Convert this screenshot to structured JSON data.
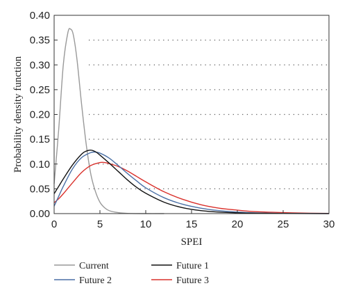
{
  "chart_data": {
    "type": "line",
    "xlabel": "SPEI",
    "ylabel": "Probability density function",
    "xlim": [
      0,
      30
    ],
    "ylim": [
      0,
      0.4
    ],
    "xticks": [
      "0",
      "5",
      "10",
      "15",
      "20",
      "25",
      "30"
    ],
    "yticks": [
      "0.00",
      "0.05",
      "0.10",
      "0.15",
      "0.20",
      "0.25",
      "0.30",
      "0.35",
      "0.40"
    ],
    "grid": "horizontal dotted",
    "legend_position": "bottom",
    "series": [
      {
        "name": "Current",
        "color": "#999999",
        "x": [
          0,
          0.5,
          1,
          1.5,
          1.8,
          2.1,
          2.5,
          3,
          3.5,
          4,
          4.5,
          5,
          5.5,
          6,
          7,
          8,
          10,
          12
        ],
        "y": [
          0.06,
          0.17,
          0.3,
          0.365,
          0.372,
          0.36,
          0.31,
          0.22,
          0.14,
          0.08,
          0.045,
          0.023,
          0.012,
          0.006,
          0.002,
          0.0005,
          0,
          0
        ]
      },
      {
        "name": "Future 1",
        "color": "#111111",
        "x": [
          0,
          0.5,
          1,
          2,
          3,
          3.5,
          4,
          4.5,
          5,
          6,
          7,
          8,
          9,
          10,
          12,
          14,
          16,
          18,
          20,
          22,
          25,
          30
        ],
        "y": [
          0.04,
          0.055,
          0.07,
          0.098,
          0.12,
          0.126,
          0.128,
          0.125,
          0.118,
          0.102,
          0.085,
          0.068,
          0.053,
          0.041,
          0.023,
          0.012,
          0.006,
          0.003,
          0.0015,
          0.0007,
          0.0002,
          0
        ]
      },
      {
        "name": "Future 2",
        "color": "#4a6fa5",
        "x": [
          0,
          0.5,
          1,
          2,
          3,
          4,
          4.5,
          5,
          6,
          7,
          8,
          9,
          10,
          12,
          14,
          16,
          18,
          20,
          22,
          25,
          30
        ],
        "y": [
          0.015,
          0.035,
          0.055,
          0.09,
          0.113,
          0.123,
          0.124,
          0.122,
          0.112,
          0.097,
          0.081,
          0.066,
          0.052,
          0.032,
          0.019,
          0.011,
          0.006,
          0.003,
          0.0015,
          0.0005,
          0.0001
        ]
      },
      {
        "name": "Future 3",
        "color": "#d9302b",
        "x": [
          0,
          0.5,
          1,
          2,
          3,
          4,
          5,
          5.5,
          6,
          7,
          8,
          9,
          10,
          12,
          14,
          16,
          18,
          20,
          22,
          25,
          28,
          30
        ],
        "y": [
          0.022,
          0.03,
          0.04,
          0.062,
          0.083,
          0.097,
          0.103,
          0.103,
          0.101,
          0.095,
          0.086,
          0.075,
          0.064,
          0.044,
          0.029,
          0.018,
          0.011,
          0.007,
          0.004,
          0.002,
          0.0008,
          0.0004
        ]
      }
    ]
  }
}
